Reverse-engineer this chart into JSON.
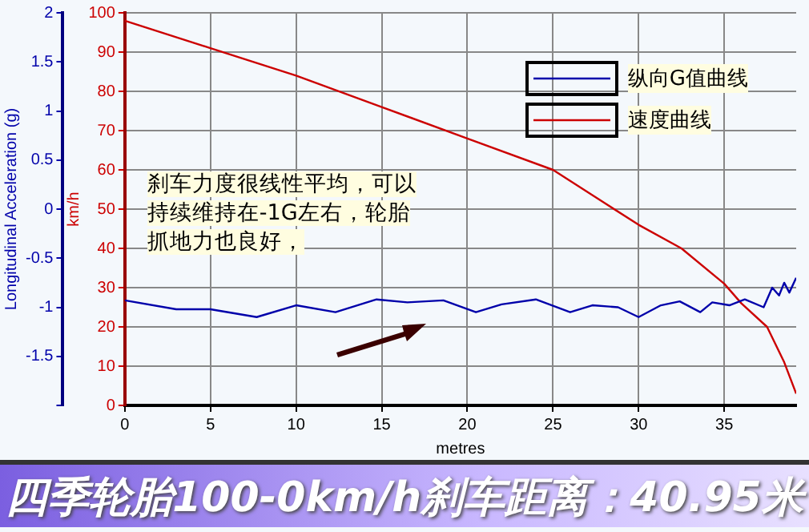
{
  "chart_data": {
    "type": "line",
    "title": "四季轮胎100-0km/h刹车距离：40.95米",
    "xlabel": "metres",
    "ylabel": "Longitudinal Acceleration (g)",
    "y2label": "km/h",
    "annotations": [
      "刹车力度很线性平均，可以持续维持在-1G左右，轮胎抓地力也良好，"
    ],
    "xlim": [
      0,
      39.2
    ],
    "xticks": [
      0,
      5,
      10,
      15,
      20,
      25,
      30,
      35
    ],
    "ylim": [
      -2,
      2
    ],
    "yticks": [
      {
        "value": -2,
        "label": null
      },
      -1.5,
      -1,
      -0.5,
      0,
      0.5,
      1,
      1.5,
      2
    ],
    "y2lim": [
      0,
      100
    ],
    "y2ticks": [
      0,
      10,
      20,
      30,
      40,
      50,
      60,
      70,
      80,
      90,
      100
    ],
    "grid": true,
    "legend": "top right",
    "marker": "none",
    "series": [
      {
        "name": "纵向G值曲线",
        "color": "#0000aa",
        "axis": "y",
        "x": [
          0,
          3,
          5,
          7.7,
          10,
          12.3,
          14.7,
          16.5,
          18.6,
          20.5,
          22,
          24,
          26,
          27.3,
          28.8,
          30,
          31.3,
          32.4,
          33.6,
          34.3,
          35.3,
          36.2,
          37.3,
          37.8,
          38.2,
          38.5,
          38.8,
          39.2
        ],
        "values": [
          -0.93,
          -1.02,
          -1.02,
          -1.1,
          -0.98,
          -1.05,
          -0.92,
          -0.95,
          -0.93,
          -1.05,
          -0.97,
          -0.92,
          -1.05,
          -0.98,
          -1.0,
          -1.1,
          -0.98,
          -0.94,
          -1.05,
          -0.95,
          -0.98,
          -0.92,
          -1.0,
          -0.8,
          -0.88,
          -0.75,
          -0.85,
          -0.7
        ]
      },
      {
        "name": "速度曲线",
        "color": "#cc0000",
        "axis": "y2",
        "x": [
          0,
          5,
          10,
          15,
          20,
          25,
          30,
          32.5,
          35,
          36,
          37.5,
          38.5,
          39.2
        ],
        "values": [
          98,
          91,
          84,
          76,
          68,
          60,
          46,
          40,
          31,
          26,
          20,
          11,
          3
        ]
      }
    ]
  }
}
